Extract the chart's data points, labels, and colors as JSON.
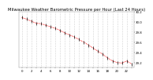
{
  "title": "Milwaukee Weather Barometric Pressure per Hour (Last 24 Hours)",
  "background_color": "#ffffff",
  "grid_color": "#aaaaaa",
  "line_color": "#ff0000",
  "tick_color": "#000000",
  "hours": [
    0,
    1,
    2,
    3,
    4,
    5,
    6,
    7,
    8,
    9,
    10,
    11,
    12,
    13,
    14,
    15,
    16,
    17,
    18,
    19,
    20,
    21,
    22,
    23
  ],
  "pressure": [
    30.08,
    30.05,
    30.01,
    29.97,
    29.96,
    29.93,
    29.9,
    29.87,
    29.83,
    29.78,
    29.74,
    29.7,
    29.65,
    29.6,
    29.54,
    29.48,
    29.42,
    29.36,
    29.29,
    29.23,
    29.2,
    29.19,
    29.23,
    29.17
  ],
  "ylim_min": 29.1,
  "ylim_max": 30.2,
  "ytick_values": [
    29.2,
    29.4,
    29.6,
    29.8,
    30.0,
    30.2
  ],
  "ytick_labels": [
    "29.2",
    "29.4",
    "29.6",
    "29.8",
    "30.0",
    "30.2"
  ],
  "title_fontsize": 3.8,
  "tick_fontsize": 2.8,
  "marker_size": 2.5,
  "line_width": 0.5
}
